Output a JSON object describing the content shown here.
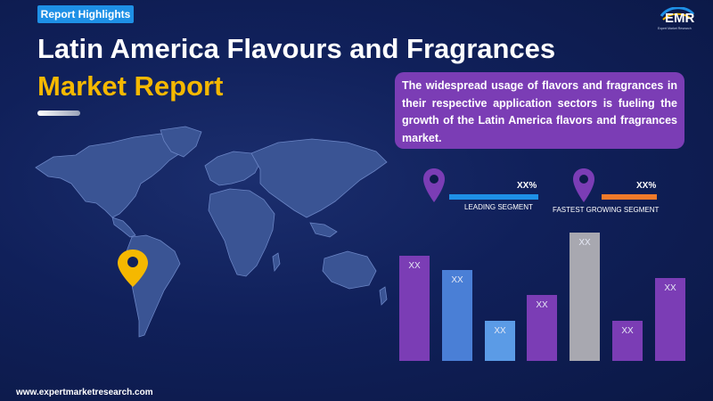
{
  "badge": "Report Highlights",
  "title": {
    "line1": "Latin America Flavours and Fragrances",
    "line2": "Market Report"
  },
  "logo": {
    "text": "EMR",
    "subtitle": "Expert Market Research"
  },
  "callout": "The widespread usage of flavors and fragrances in their respective application sectors is fueling the growth of the Latin America flavors and fragrances market.",
  "segments": [
    {
      "value": "XX%",
      "label": "LEADING SEGMENT",
      "line_color": "#1e90e6",
      "pin_color": "#7b3db5"
    },
    {
      "value": "XX%",
      "label": "FASTEST GROWING SEGMENT",
      "line_color": "#f07a2a",
      "pin_color": "#7b3db5"
    }
  ],
  "chart_data": {
    "type": "bar",
    "categories": [
      "",
      "",
      "",
      "",
      "",
      "",
      ""
    ],
    "values": [
      0.74,
      0.64,
      0.28,
      0.46,
      0.9,
      0.28,
      0.58
    ],
    "value_labels": [
      "XX",
      "XX",
      "XX",
      "XX",
      "XX",
      "XX",
      "XX"
    ],
    "colors": [
      "#7b3db5",
      "#4a7fd6",
      "#5b9be6",
      "#7b3db5",
      "#a8a8b0",
      "#7b3db5",
      "#7b3db5"
    ],
    "ylim": [
      0,
      1
    ]
  },
  "footer": "www.expertmarketresearch.com",
  "colors": {
    "accent_yellow": "#f5b800",
    "background": "#0d1b4a"
  }
}
